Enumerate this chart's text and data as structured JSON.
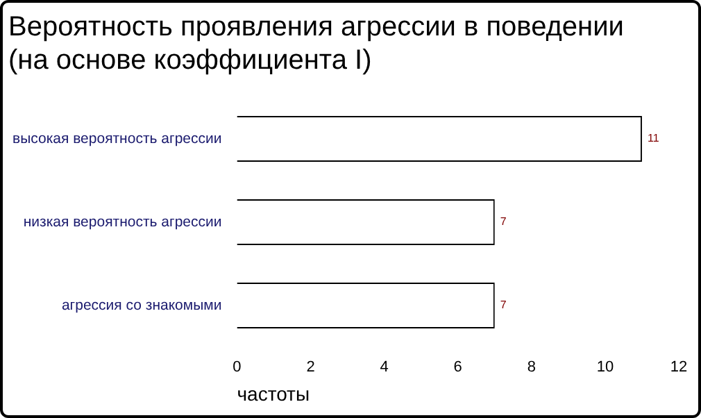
{
  "chart_data": {
    "type": "bar",
    "orientation": "horizontal",
    "title": "Вероятность проявления агрессии в поведении (на основе коэффициента I)",
    "xlabel": "частоты",
    "categories": [
      "высокая вероятность агрессии",
      "низкая вероятность агрессии",
      "агрессия со знакомыми"
    ],
    "values": [
      11,
      7,
      7
    ],
    "color": "#ffffff",
    "xlim": [
      0,
      12
    ],
    "xticks": [
      0,
      2,
      4,
      6,
      8,
      10,
      12
    ],
    "grid": false,
    "legend": false,
    "data_labels": true
  }
}
